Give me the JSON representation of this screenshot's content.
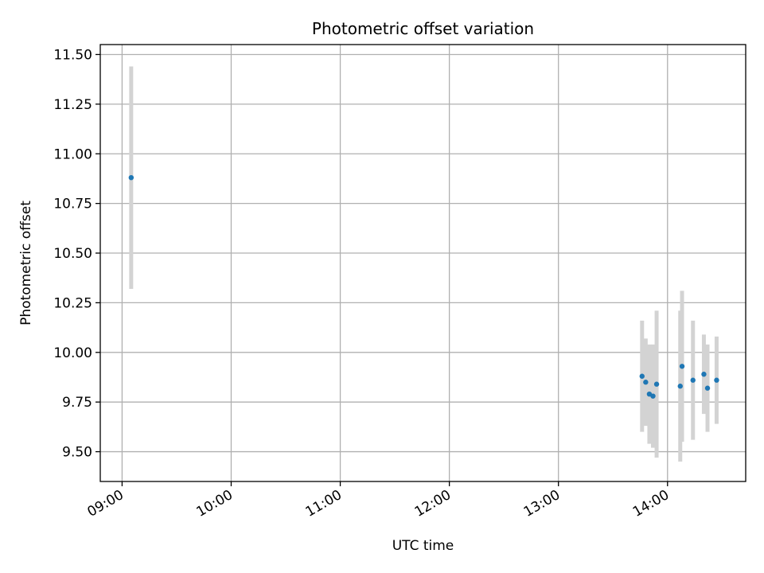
{
  "chart_data": {
    "type": "scatter",
    "title": "Photometric offset variation",
    "xlabel": "UTC time",
    "ylabel": "Photometric offset",
    "x_axis_type": "time",
    "xlim": [
      "08:48",
      "14:43"
    ],
    "ylim": [
      9.35,
      11.55
    ],
    "x_ticks": [
      "09:00",
      "10:00",
      "11:00",
      "12:00",
      "13:00",
      "14:00"
    ],
    "y_ticks": [
      9.5,
      9.75,
      10.0,
      10.25,
      10.5,
      10.75,
      11.0,
      11.25,
      11.5
    ],
    "y_tick_labels": [
      "9.50",
      "9.75",
      "10.00",
      "10.25",
      "10.50",
      "10.75",
      "11.00",
      "11.25",
      "11.50"
    ],
    "grid": true,
    "marker_color": "#1f77b4",
    "errorbar_color": "#d3d3d3",
    "points": [
      {
        "x": "09:05",
        "y": 10.88,
        "err": 0.56
      },
      {
        "x": "13:46",
        "y": 9.88,
        "err": 0.28
      },
      {
        "x": "13:48",
        "y": 9.85,
        "err": 0.22
      },
      {
        "x": "13:50",
        "y": 9.79,
        "err": 0.25
      },
      {
        "x": "13:52",
        "y": 9.78,
        "err": 0.26
      },
      {
        "x": "13:54",
        "y": 9.84,
        "err": 0.37
      },
      {
        "x": "14:07",
        "y": 9.83,
        "err": 0.38
      },
      {
        "x": "14:08",
        "y": 9.93,
        "err": 0.38
      },
      {
        "x": "14:14",
        "y": 9.86,
        "err": 0.3
      },
      {
        "x": "14:20",
        "y": 9.89,
        "err": 0.2
      },
      {
        "x": "14:22",
        "y": 9.82,
        "err": 0.22
      },
      {
        "x": "14:27",
        "y": 9.86,
        "err": 0.22
      }
    ]
  }
}
